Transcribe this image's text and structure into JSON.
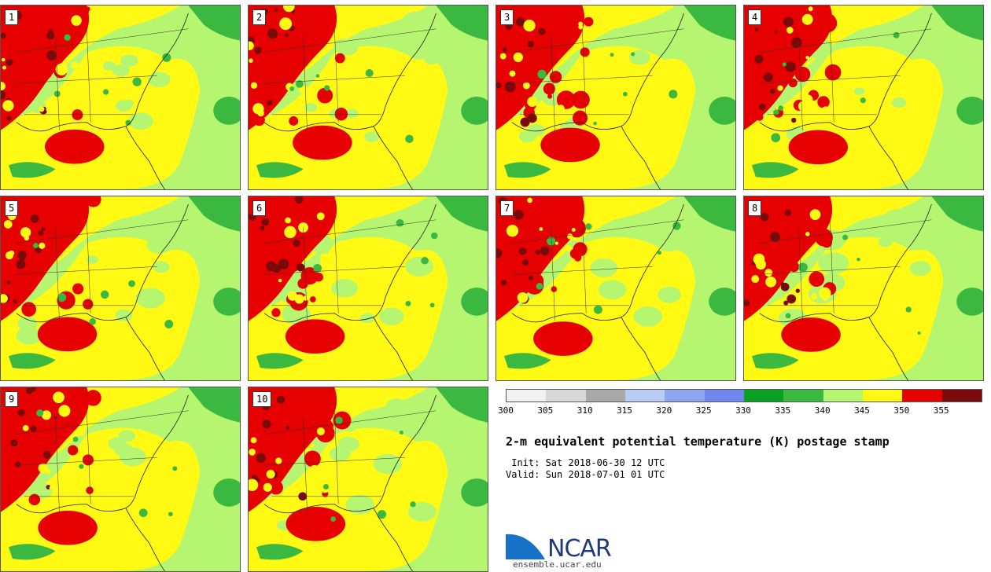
{
  "panels": [
    {
      "number": "1"
    },
    {
      "number": "2"
    },
    {
      "number": "3"
    },
    {
      "number": "4"
    },
    {
      "number": "5"
    },
    {
      "number": "6"
    },
    {
      "number": "7"
    },
    {
      "number": "8"
    },
    {
      "number": "9"
    },
    {
      "number": "10"
    }
  ],
  "colorbar": {
    "colors": [
      "#f2f2f2",
      "#d8d8d8",
      "#a9a9a9",
      "#b9ccf5",
      "#8da6f0",
      "#7088ee",
      "#0aa022",
      "#3bb83f",
      "#b6f56f",
      "#fff914",
      "#e60000",
      "#7a0a0a"
    ],
    "tick_labels": [
      "300",
      "305",
      "310",
      "315",
      "320",
      "325",
      "330",
      "335",
      "340",
      "345",
      "350",
      "355"
    ]
  },
  "title": "2-m equivalent potential temperature (K) postage stamp",
  "init_line": " Init: Sat 2018-06-30 12 UTC",
  "valid_line": "Valid: Sun 2018-07-01 01 UTC",
  "logo": {
    "name": "NCAR",
    "url": "ensemble.ucar.edu"
  }
}
